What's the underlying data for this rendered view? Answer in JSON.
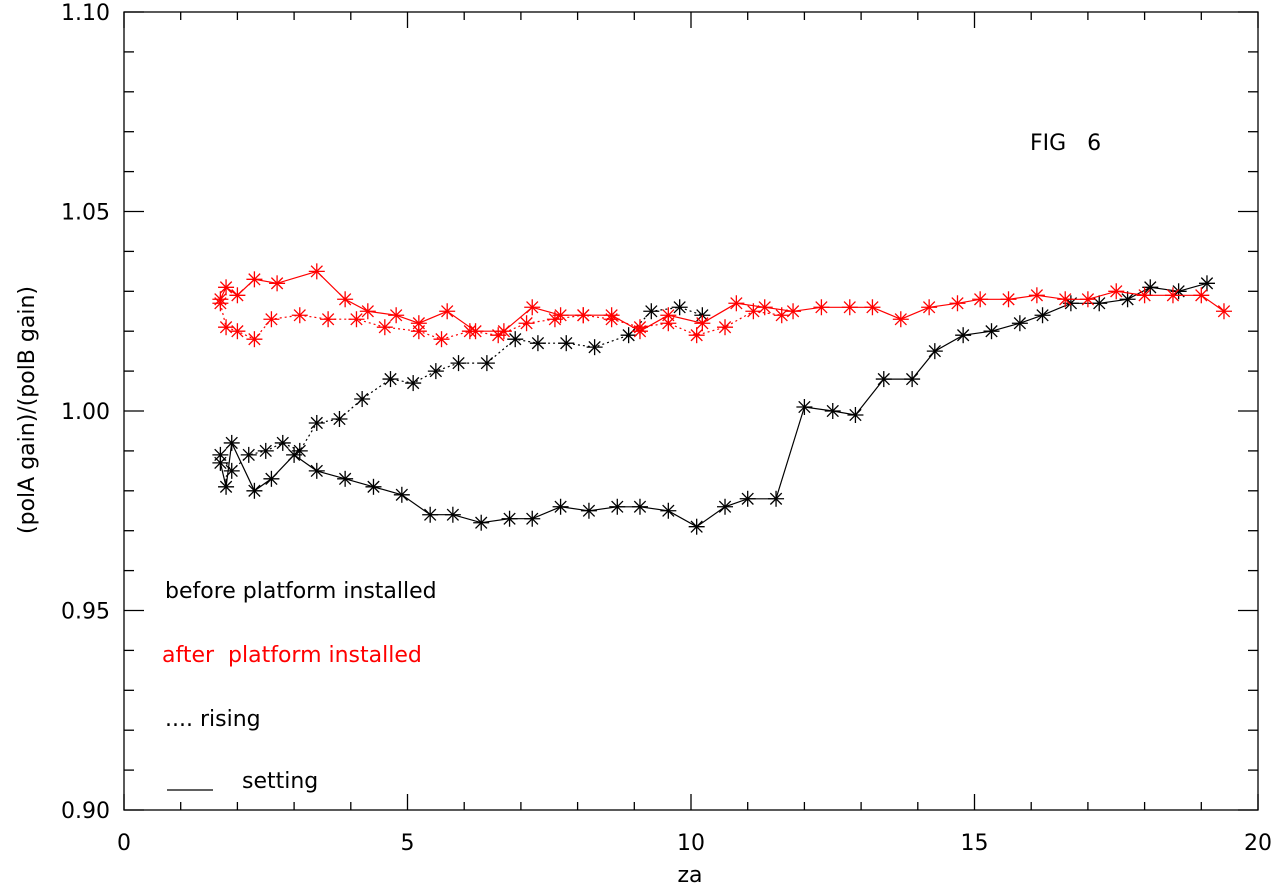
{
  "chart_data": {
    "type": "line",
    "title": "",
    "xlabel": "za",
    "ylabel": "(polA gain)/(polB gain)",
    "xlim": [
      0,
      20
    ],
    "ylim": [
      0.9,
      1.1
    ],
    "x_ticks": [
      "0",
      "5",
      "10",
      "15",
      "20"
    ],
    "y_ticks": [
      "0.90",
      "0.95",
      "1.00",
      "1.05",
      "1.10"
    ],
    "grid": false,
    "annotations": {
      "fig_label": "FIG   6",
      "legend_before": "before platform installed",
      "legend_after": "after  platform installed",
      "legend_rising": ".... rising",
      "legend_setting": "setting"
    },
    "colors": {
      "before": "#000000",
      "after": "#ff0000"
    },
    "series": [
      {
        "group": "before",
        "mode": "rising",
        "color": "#000000",
        "x": [
          1.7,
          1.9,
          2.2,
          2.5,
          2.8,
          3.1,
          3.4,
          3.8,
          4.2,
          4.7,
          5.1,
          5.5,
          5.9,
          6.4,
          6.9,
          7.3,
          7.8,
          8.3,
          8.9,
          9.3,
          9.8,
          10.2
        ],
        "y": [
          0.989,
          0.985,
          0.989,
          0.99,
          0.992,
          0.99,
          0.997,
          0.998,
          1.003,
          1.008,
          1.007,
          1.01,
          1.012,
          1.012,
          1.018,
          1.017,
          1.017,
          1.016,
          1.019,
          1.025,
          1.026,
          1.024
        ]
      },
      {
        "group": "before",
        "mode": "setting",
        "color": "#000000",
        "x": [
          1.7,
          1.8,
          1.9,
          2.3,
          2.6,
          3.0,
          3.4,
          3.9,
          4.4,
          4.9,
          5.4,
          5.8,
          6.3,
          6.8,
          7.2,
          7.7,
          8.2,
          8.7,
          9.1,
          9.6,
          10.1,
          10.6,
          11.0,
          11.5,
          12.0,
          12.5,
          12.9,
          13.4,
          13.9,
          14.3,
          14.8,
          15.3,
          15.8,
          16.2,
          16.7,
          17.2,
          17.7,
          18.1,
          18.6,
          19.1
        ],
        "y": [
          0.987,
          0.981,
          0.992,
          0.98,
          0.983,
          0.989,
          0.985,
          0.983,
          0.981,
          0.979,
          0.974,
          0.974,
          0.972,
          0.973,
          0.973,
          0.976,
          0.975,
          0.976,
          0.976,
          0.975,
          0.971,
          0.976,
          0.978,
          0.978,
          1.001,
          1.0,
          0.999,
          1.008,
          1.008,
          1.015,
          1.019,
          1.02,
          1.022,
          1.024,
          1.027,
          1.027,
          1.028,
          1.031,
          1.03,
          1.032
        ]
      },
      {
        "group": "after",
        "mode": "rising",
        "color": "#ff0000",
        "x": [
          1.7,
          1.8,
          2.0,
          2.3,
          2.6,
          3.1,
          3.6,
          4.1,
          4.6,
          5.2,
          5.6,
          6.1,
          6.6,
          7.1,
          7.6,
          8.1,
          8.6,
          9.1,
          9.6,
          10.1,
          10.6,
          11.1,
          11.6
        ],
        "y": [
          1.027,
          1.021,
          1.02,
          1.018,
          1.023,
          1.024,
          1.023,
          1.023,
          1.021,
          1.02,
          1.018,
          1.02,
          1.019,
          1.022,
          1.023,
          1.024,
          1.023,
          1.021,
          1.022,
          1.019,
          1.021,
          1.025,
          1.024
        ]
      },
      {
        "group": "after",
        "mode": "setting",
        "color": "#ff0000",
        "x": [
          1.7,
          1.8,
          2.0,
          2.3,
          2.7,
          3.4,
          3.9,
          4.3,
          4.8,
          5.2,
          5.7,
          6.2,
          6.7,
          7.2,
          7.7,
          8.1,
          8.6,
          9.1,
          9.6,
          10.2,
          10.8,
          11.3,
          11.8,
          12.3,
          12.8,
          13.2,
          13.7,
          14.2,
          14.7,
          15.1,
          15.6,
          16.1,
          16.6,
          17.0,
          17.5,
          18.0,
          18.5,
          19.0,
          19.4
        ],
        "y": [
          1.028,
          1.031,
          1.029,
          1.033,
          1.032,
          1.035,
          1.028,
          1.025,
          1.024,
          1.022,
          1.025,
          1.02,
          1.02,
          1.026,
          1.024,
          1.024,
          1.024,
          1.02,
          1.024,
          1.022,
          1.027,
          1.026,
          1.025,
          1.026,
          1.026,
          1.026,
          1.023,
          1.026,
          1.027,
          1.028,
          1.028,
          1.029,
          1.028,
          1.028,
          1.03,
          1.029,
          1.029,
          1.029,
          1.025
        ]
      }
    ]
  }
}
